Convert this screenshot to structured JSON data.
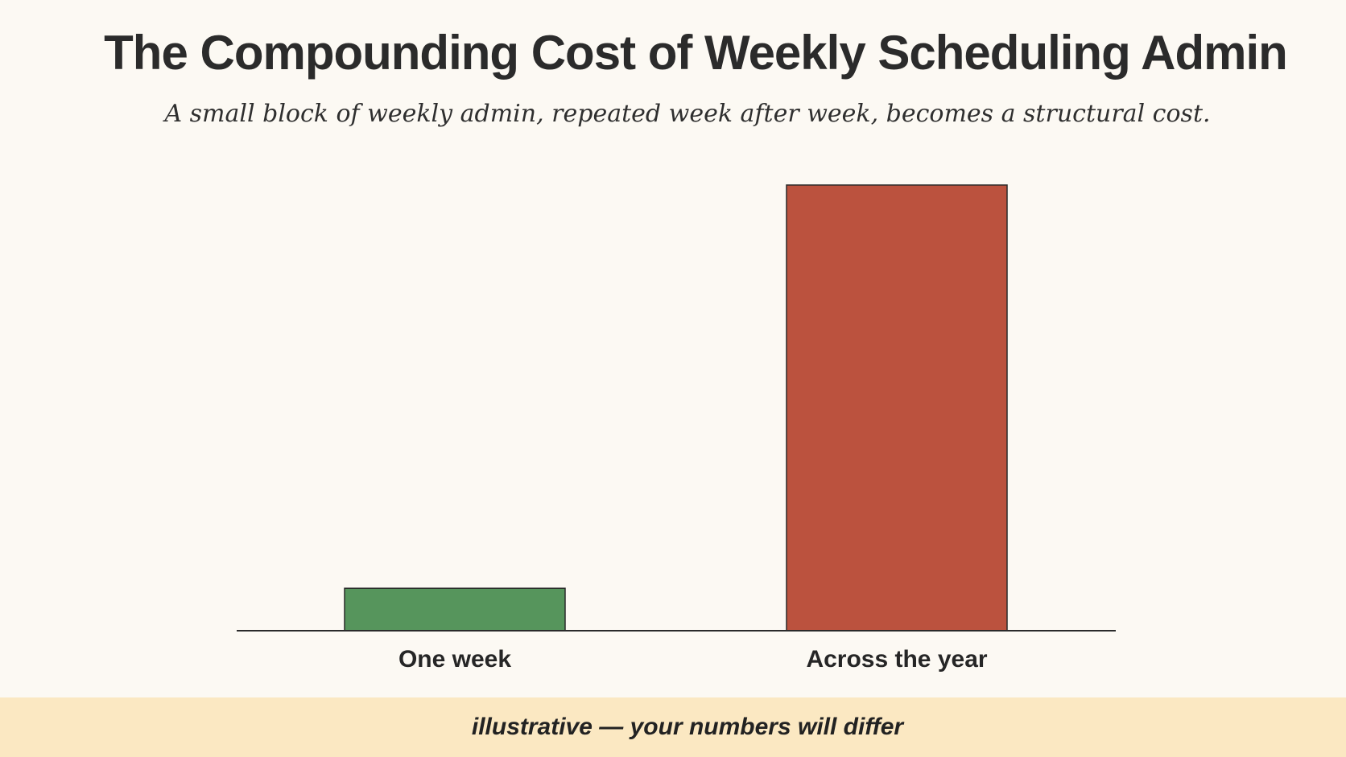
{
  "chart_data": {
    "type": "bar",
    "title": "The Compounding Cost of Weekly Scheduling Admin",
    "subtitle": "A small block of weekly admin, repeated week after week, becomes a structural cost.",
    "categories": [
      "One week",
      "Across the year"
    ],
    "values": [
      1,
      10.5
    ],
    "colors": [
      "#56955c",
      "#bb523e"
    ],
    "xlabel": "",
    "ylabel": "",
    "ylim": [
      0,
      10.5
    ],
    "grid": false,
    "legend": "none"
  },
  "footer": {
    "note": "illustrative — your numbers will differ"
  }
}
